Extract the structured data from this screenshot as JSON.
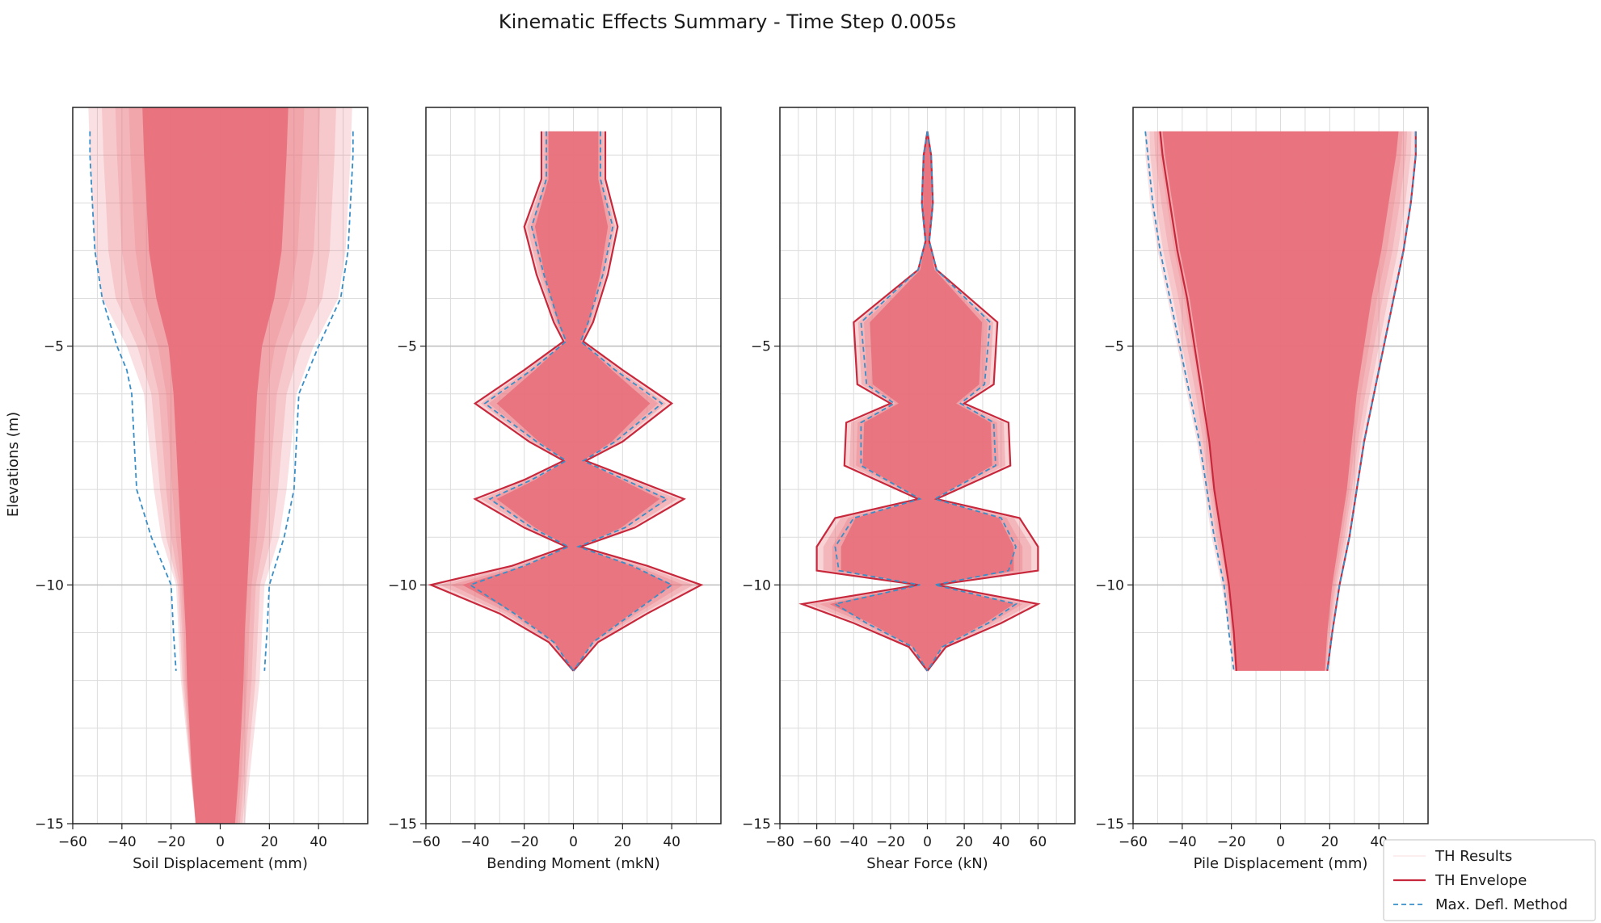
{
  "title": "Kinematic Effects Summary - Time Step 0.005s",
  "ylabel": "Elevations (m)",
  "colors": {
    "fill": "#e8707c",
    "envelope": "#c8283c",
    "method": "#3a8ec8",
    "grid": "#dcdcdc"
  },
  "legend": {
    "placement": "bottom-right",
    "items": [
      {
        "label": "TH Results",
        "style": "results"
      },
      {
        "label": "TH Envelope",
        "style": "envelope"
      },
      {
        "label": "Max. Defl. Method",
        "style": "method"
      }
    ]
  },
  "chart_data": [
    {
      "type": "area",
      "xlabel": "Soil Displacement (mm)",
      "xlim": [
        -60,
        60
      ],
      "ylim": [
        -15,
        0
      ],
      "xticks": [
        -60,
        -40,
        -20,
        0,
        20,
        40
      ],
      "yticks": [
        -5,
        -10,
        -15
      ],
      "xgrid_step": 10,
      "grid": true,
      "profile": {
        "elev": [
          0,
          -1,
          -2,
          -3,
          -4,
          -5,
          -6,
          -7,
          -8,
          -9,
          -10,
          -11,
          -12,
          -13,
          -14,
          -15
        ],
        "inner": [
          28,
          27,
          26,
          25,
          22,
          17,
          15,
          14,
          13,
          12,
          11,
          10,
          9.5,
          8.5,
          7.5,
          6
        ],
        "outer": [
          54,
          53,
          52,
          51,
          48,
          38,
          31,
          29,
          27,
          24,
          18,
          17,
          16,
          14,
          12,
          10
        ],
        "inner_offset": -4
      },
      "series": [
        {
          "name": "Max. Defl. Method",
          "elev": [
            -0.5,
            -1,
            -2,
            -3,
            -4,
            -5,
            -5.5,
            -6,
            -7,
            -8,
            -9,
            -10,
            -11,
            -11.8
          ],
          "left": [
            -53,
            -53,
            -52,
            -51,
            -48,
            -42,
            -38,
            -36,
            -35,
            -34,
            -28,
            -20,
            -19,
            -18
          ],
          "right": [
            54,
            54,
            53,
            52,
            49,
            40,
            36,
            32,
            31,
            30,
            26,
            20,
            19,
            18
          ]
        }
      ]
    },
    {
      "type": "area",
      "xlabel": "Bending Moment (mkN)",
      "xlim": [
        -60,
        60
      ],
      "ylim": [
        -15,
        0
      ],
      "xticks": [
        -60,
        -40,
        -20,
        0,
        20,
        40
      ],
      "yticks": [
        -5,
        -10,
        -15
      ],
      "xgrid_step": 10,
      "grid": true,
      "series": [
        {
          "name": "TH Envelope",
          "elev": [
            -0.5,
            -1.5,
            -2.5,
            -3.5,
            -4.5,
            -4.9,
            -5.5,
            -6.2,
            -7.0,
            -7.4,
            -7.8,
            -8.2,
            -8.8,
            -9.2,
            -9.6,
            -10.0,
            -10.6,
            -11.2,
            -11.8
          ],
          "left": [
            -13,
            -13,
            -20,
            -15,
            -8,
            -4,
            -20,
            -40,
            -18,
            -4,
            -20,
            -40,
            -20,
            -3,
            -25,
            -58,
            -30,
            -10,
            0
          ],
          "right": [
            13,
            13,
            18,
            14,
            8,
            4,
            20,
            40,
            20,
            5,
            25,
            45,
            25,
            3,
            30,
            52,
            30,
            10,
            0
          ]
        },
        {
          "name": "Max. Defl. Method",
          "elev": [
            -0.5,
            -1.5,
            -2.5,
            -3.5,
            -4.5,
            -4.9,
            -5.5,
            -6.2,
            -7.0,
            -7.4,
            -7.8,
            -8.2,
            -8.8,
            -9.2,
            -9.6,
            -10.0,
            -10.6,
            -11.2,
            -11.8
          ],
          "left": [
            -11,
            -11,
            -17,
            -12,
            -6,
            -3,
            -17,
            -36,
            -15,
            -3,
            -17,
            -34,
            -17,
            -2,
            -20,
            -42,
            -24,
            -8,
            0
          ],
          "right": [
            11,
            11,
            16,
            12,
            6,
            3,
            17,
            36,
            17,
            4,
            21,
            38,
            21,
            2,
            24,
            40,
            24,
            8,
            0
          ]
        }
      ]
    },
    {
      "type": "area",
      "xlabel": "Shear Force (kN)",
      "xlim": [
        -80,
        80
      ],
      "ylim": [
        -15,
        0
      ],
      "xticks": [
        -80,
        -60,
        -40,
        -20,
        0,
        20,
        40,
        60
      ],
      "yticks": [
        -5,
        -10,
        -15
      ],
      "xgrid_step": 10,
      "grid": true,
      "series": [
        {
          "name": "TH Envelope",
          "elev": [
            -0.5,
            -1.0,
            -2.0,
            -2.8,
            -3.4,
            -4.5,
            -5.8,
            -6.2,
            -6.6,
            -7.5,
            -8.2,
            -8.6,
            -9.2,
            -9.7,
            -10.0,
            -10.4,
            -10.8,
            -11.3,
            -11.8
          ],
          "left": [
            0,
            -2,
            -3,
            -1,
            -5,
            -40,
            -38,
            -20,
            -44,
            -45,
            -5,
            -50,
            -60,
            -60,
            -5,
            -68,
            -40,
            -10,
            0
          ],
          "right": [
            0,
            2,
            3,
            1,
            5,
            38,
            36,
            20,
            44,
            45,
            5,
            50,
            60,
            60,
            5,
            60,
            40,
            10,
            0
          ]
        },
        {
          "name": "Max. Defl. Method",
          "elev": [
            -0.5,
            -1.0,
            -2.0,
            -2.8,
            -3.4,
            -4.5,
            -5.8,
            -6.2,
            -6.6,
            -7.5,
            -8.2,
            -8.6,
            -9.2,
            -9.7,
            -10.0,
            -10.4,
            -10.8,
            -11.3,
            -11.8
          ],
          "left": [
            0,
            -2,
            -3,
            -1,
            -5,
            -36,
            -33,
            -18,
            -36,
            -36,
            -4,
            -40,
            -50,
            -48,
            -4,
            -50,
            -33,
            -8,
            0
          ],
          "right": [
            0,
            2,
            3,
            1,
            5,
            34,
            31,
            18,
            36,
            37,
            4,
            40,
            48,
            44,
            4,
            48,
            33,
            8,
            0
          ]
        }
      ]
    },
    {
      "type": "area",
      "xlabel": "Pile Displacement (mm)",
      "xlim": [
        -60,
        60
      ],
      "ylim": [
        -15,
        0
      ],
      "xticks": [
        -60,
        -40,
        -20,
        0,
        20,
        40
      ],
      "yticks": [
        -5,
        -10,
        -15
      ],
      "xgrid_step": 10,
      "grid": true,
      "profile": {
        "elev": [
          -0.5,
          -1,
          -2,
          -3,
          -4,
          -5,
          -6,
          -7,
          -8,
          -9,
          -10,
          -11,
          -11.8
        ],
        "inner": [
          48,
          47,
          44,
          41,
          37,
          34,
          31,
          29,
          27,
          24,
          21,
          19,
          18
        ],
        "outer": [
          55,
          55,
          53,
          50,
          46,
          42,
          38,
          34,
          31,
          28,
          24,
          21,
          19
        ],
        "inner_offset": 0
      },
      "series": [
        {
          "name": "TH Envelope",
          "elev": [
            -0.5,
            -1,
            -2,
            -3,
            -4,
            -5,
            -6,
            -7,
            -8,
            -9,
            -10,
            -11,
            -11.8
          ],
          "left": [
            -49,
            -48,
            -45,
            -42,
            -38,
            -35,
            -32,
            -29,
            -27,
            -24,
            -21,
            -19,
            -18
          ],
          "right": [
            55,
            55,
            53,
            50,
            46,
            42,
            38,
            34,
            31,
            28,
            24,
            21,
            19
          ]
        },
        {
          "name": "Max. Defl. Method",
          "elev": [
            -0.5,
            -1,
            -2,
            -3,
            -4,
            -5,
            -6,
            -7,
            -8,
            -9,
            -10,
            -11,
            -11.8
          ],
          "left": [
            -55,
            -54,
            -52,
            -49,
            -45,
            -41,
            -37,
            -33,
            -30,
            -27,
            -23,
            -21,
            -19
          ],
          "right": [
            55,
            55,
            53,
            50,
            46,
            42,
            38,
            34,
            31,
            28,
            24,
            21,
            19
          ]
        }
      ]
    }
  ]
}
